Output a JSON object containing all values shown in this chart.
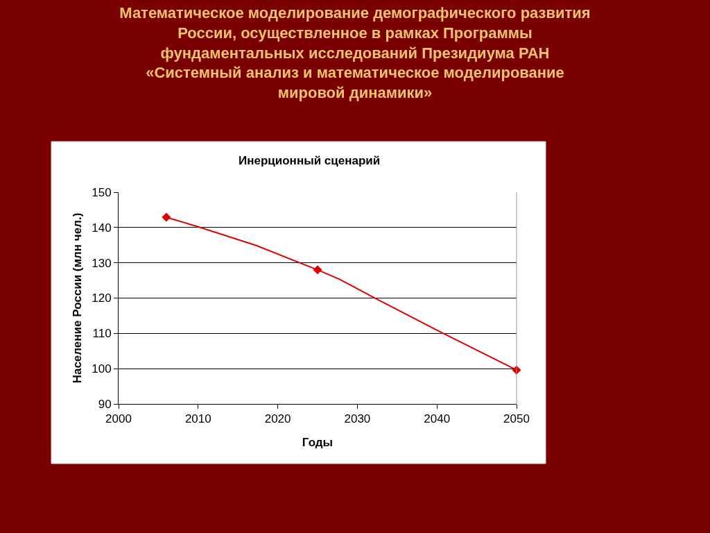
{
  "chart_data": {
    "type": "line",
    "title": "Математическое моделирование демографического развития\nРоссии, осуществленное в рамках Программы\nфундаментальных исследований Президиума РАН\n«Системный анализ и математическое моделирование\nмировой динамики»",
    "subtitle": "Инерционный сценарий",
    "xlabel": "Годы",
    "ylabel": "Население России (млн чел.)",
    "series": [
      {
        "marker": "none",
        "color": "#e00000",
        "x": [
          2006,
          2010,
          2017.3,
          2025,
          2027.7,
          2032.3,
          2040.7,
          2050
        ],
        "values": [
          142.9,
          140.2,
          134.9,
          128.0,
          125.4,
          119.9,
          110.1,
          99.6
        ]
      },
      {
        "type": "scatter",
        "marker": "diamond",
        "color": "#e00000",
        "x": [
          2006,
          2025,
          2050
        ],
        "values": [
          142.9,
          128.0,
          99.6
        ]
      }
    ],
    "xlim": [
      2000,
      2050
    ],
    "xticks": [
      2000,
      2010,
      2020,
      2030,
      2040,
      2050
    ],
    "ylim": [
      90,
      150
    ],
    "yticks": [
      90,
      100,
      110,
      120,
      130,
      140,
      150
    ],
    "grid": "y"
  }
}
